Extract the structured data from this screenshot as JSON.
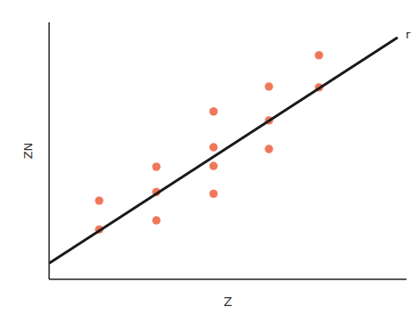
{
  "chart_data": {
    "type": "scatter",
    "x_label": "Z",
    "y_label": "ZN",
    "xlim": [
      0,
      10
    ],
    "ylim": [
      0,
      10
    ],
    "tick_labels": false,
    "grid": false,
    "series": [
      {
        "type": "scatter",
        "color": "#f0785a",
        "marker": "circle",
        "x": [
          1.4,
          1.4,
          3.0,
          3.0,
          3.0,
          4.6,
          4.6,
          4.6,
          4.6,
          6.15,
          6.15,
          6.15,
          7.55,
          7.55
        ],
        "values": [
          3.06,
          1.94,
          4.38,
          3.4,
          2.29,
          6.53,
          5.14,
          4.41,
          3.33,
          7.5,
          6.18,
          5.07,
          8.72,
          7.47
        ]
      },
      {
        "type": "line",
        "name": "r",
        "color": "#1a1a1a",
        "line_style": "solid",
        "x": [
          0,
          9.75
        ],
        "values": [
          0.625,
          9.41
        ]
      }
    ]
  }
}
